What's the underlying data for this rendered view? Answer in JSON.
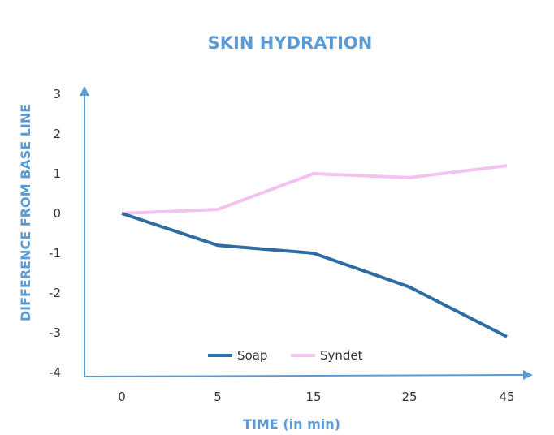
{
  "chart_data": {
    "type": "line",
    "title": "SKIN HYDRATION",
    "xlabel": "TIME (in min)",
    "ylabel": "DIFFERENCE FROM BASE LINE",
    "categories": [
      "0",
      "5",
      "15",
      "25",
      "45"
    ],
    "ylim": [
      -4,
      3
    ],
    "yticks": [
      "3",
      "2",
      "1",
      "0",
      "-1",
      "-2",
      "-3",
      "-4"
    ],
    "grid": false,
    "legend_position": "bottom-inside",
    "series": [
      {
        "name": "Soap",
        "color": "#2e6da4",
        "values": [
          0,
          -0.8,
          -1.0,
          -1.85,
          -3.1
        ]
      },
      {
        "name": "Syndet",
        "color": "#f4c2ee",
        "values": [
          0,
          0.1,
          1.0,
          0.9,
          1.2
        ]
      }
    ],
    "axis_color": "#5b9bd5"
  }
}
